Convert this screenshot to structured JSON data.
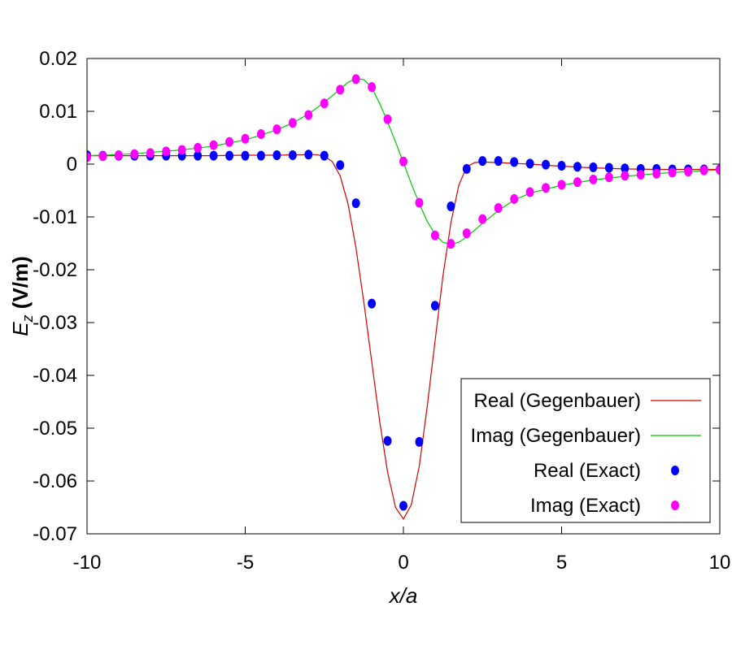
{
  "chart_data": {
    "type": "line",
    "xlabel": "x/a",
    "ylabel": "E_z (V/m)",
    "xlim": [
      -10,
      10
    ],
    "ylim": [
      -0.07,
      0.02
    ],
    "xticks": [
      -10,
      -5,
      0,
      5,
      10
    ],
    "xtick_labels": [
      "-10",
      "-5",
      "0",
      "5",
      "10"
    ],
    "yticks": [
      0.02,
      0.01,
      0,
      -0.01,
      -0.02,
      -0.03,
      -0.04,
      -0.05,
      -0.06,
      -0.07
    ],
    "ytick_labels": [
      "0.02",
      "0.01",
      "0",
      "-0.01",
      "-0.02",
      "-0.03",
      "-0.04",
      "-0.05",
      "-0.06",
      "-0.07"
    ],
    "grid": false,
    "legend_position": "bottom-right",
    "series": [
      {
        "name": "Real (Gegenbauer)",
        "style": "line",
        "color": "#d40000",
        "x": [
          -10,
          -9,
          -8,
          -7,
          -6,
          -5,
          -4,
          -3,
          -2.75,
          -2.5,
          -2.25,
          -2,
          -1.75,
          -1.5,
          -1.25,
          -1,
          -0.75,
          -0.5,
          -0.25,
          0,
          0.25,
          0.5,
          0.75,
          1,
          1.25,
          1.5,
          1.75,
          2,
          2.25,
          2.5,
          3,
          4,
          5,
          6,
          7,
          8,
          9,
          10
        ],
        "y": [
          0.0016,
          0.0016,
          0.0016,
          0.0016,
          0.0016,
          0.0017,
          0.0017,
          0.0018,
          0.0018,
          0.0015,
          0.0005,
          -0.0022,
          -0.0075,
          -0.0158,
          -0.0262,
          -0.0375,
          -0.0487,
          -0.0583,
          -0.065,
          -0.0672,
          -0.0645,
          -0.0572,
          -0.046,
          -0.0335,
          -0.0212,
          -0.0112,
          -0.004,
          -0.0005,
          0.0003,
          0.0004,
          0.0003,
          0.0,
          -0.0004,
          -0.0007,
          -0.0009,
          -0.001,
          -0.001,
          -0.001
        ]
      },
      {
        "name": "Imag (Gegenbauer)",
        "style": "line",
        "color": "#00c800",
        "x": [
          -10,
          -9,
          -8,
          -7,
          -6,
          -5,
          -4.5,
          -4,
          -3.5,
          -3,
          -2.5,
          -2,
          -1.75,
          -1.5,
          -1.25,
          -1,
          -0.75,
          -0.5,
          -0.25,
          0,
          0.25,
          0.5,
          0.75,
          1,
          1.25,
          1.5,
          1.75,
          2,
          2.5,
          3,
          3.5,
          4,
          5,
          6,
          7,
          8,
          9,
          10
        ],
        "y": [
          0.0016,
          0.0018,
          0.0022,
          0.0027,
          0.0034,
          0.0046,
          0.0055,
          0.0065,
          0.0078,
          0.0095,
          0.0117,
          0.0142,
          0.0155,
          0.0162,
          0.016,
          0.0145,
          0.0115,
          0.008,
          0.0042,
          0.0003,
          -0.0037,
          -0.0075,
          -0.0108,
          -0.0133,
          -0.0148,
          -0.0152,
          -0.0148,
          -0.0138,
          -0.0112,
          -0.0088,
          -0.0068,
          -0.0055,
          -0.004,
          -0.003,
          -0.0023,
          -0.0018,
          -0.0014,
          -0.0011
        ]
      },
      {
        "name": "Real (Exact)",
        "style": "points",
        "color": "#0000ff",
        "x": [
          -10,
          -9.5,
          -9,
          -8.5,
          -8,
          -7.5,
          -7,
          -6.5,
          -6,
          -5.5,
          -5,
          -4.5,
          -4,
          -3.5,
          -3,
          -2.5,
          -2,
          -1.5,
          -1,
          -0.5,
          0,
          0.5,
          1,
          1.5,
          2,
          2.5,
          3,
          3.5,
          4,
          4.5,
          5,
          5.5,
          6,
          6.5,
          7,
          7.5,
          8,
          8.5,
          9,
          9.5,
          10
        ],
        "y": [
          0.0017,
          0.0016,
          0.0016,
          0.0016,
          0.0016,
          0.0016,
          0.0016,
          0.0016,
          0.0016,
          0.0016,
          0.0016,
          0.0016,
          0.0017,
          0.0017,
          0.0018,
          0.0016,
          -0.0002,
          -0.0074,
          -0.0264,
          -0.0524,
          -0.0647,
          -0.0526,
          -0.0268,
          -0.008,
          -0.0009,
          0.0006,
          0.0006,
          0.0004,
          0.0001,
          -0.0001,
          -0.0003,
          -0.0005,
          -0.0006,
          -0.0007,
          -0.0008,
          -0.0009,
          -0.0009,
          -0.001,
          -0.001,
          -0.001,
          -0.001
        ]
      },
      {
        "name": "Imag (Exact)",
        "style": "points",
        "color": "#ff00ff",
        "x": [
          -10,
          -9.5,
          -9,
          -8.5,
          -8,
          -7.5,
          -7,
          -6.5,
          -6,
          -5.5,
          -5,
          -4.5,
          -4,
          -3.5,
          -3,
          -2.5,
          -2,
          -1.5,
          -1,
          -0.5,
          0,
          0.5,
          1,
          1.5,
          2,
          2.5,
          3,
          3.5,
          4,
          4.5,
          5,
          5.5,
          6,
          6.5,
          7,
          7.5,
          8,
          8.5,
          9,
          9.5,
          10
        ],
        "y": [
          0.0013,
          0.0015,
          0.0017,
          0.0019,
          0.0021,
          0.0024,
          0.0027,
          0.0031,
          0.0036,
          0.0042,
          0.0048,
          0.0057,
          0.0066,
          0.0078,
          0.0093,
          0.0115,
          0.0141,
          0.0161,
          0.0146,
          0.0085,
          0.0005,
          -0.0073,
          -0.0135,
          -0.0151,
          -0.0131,
          -0.0104,
          -0.0083,
          -0.0066,
          -0.0053,
          -0.0045,
          -0.0039,
          -0.0034,
          -0.0029,
          -0.0025,
          -0.0022,
          -0.002,
          -0.0018,
          -0.0016,
          -0.0014,
          -0.0012,
          -0.0011
        ]
      }
    ]
  }
}
